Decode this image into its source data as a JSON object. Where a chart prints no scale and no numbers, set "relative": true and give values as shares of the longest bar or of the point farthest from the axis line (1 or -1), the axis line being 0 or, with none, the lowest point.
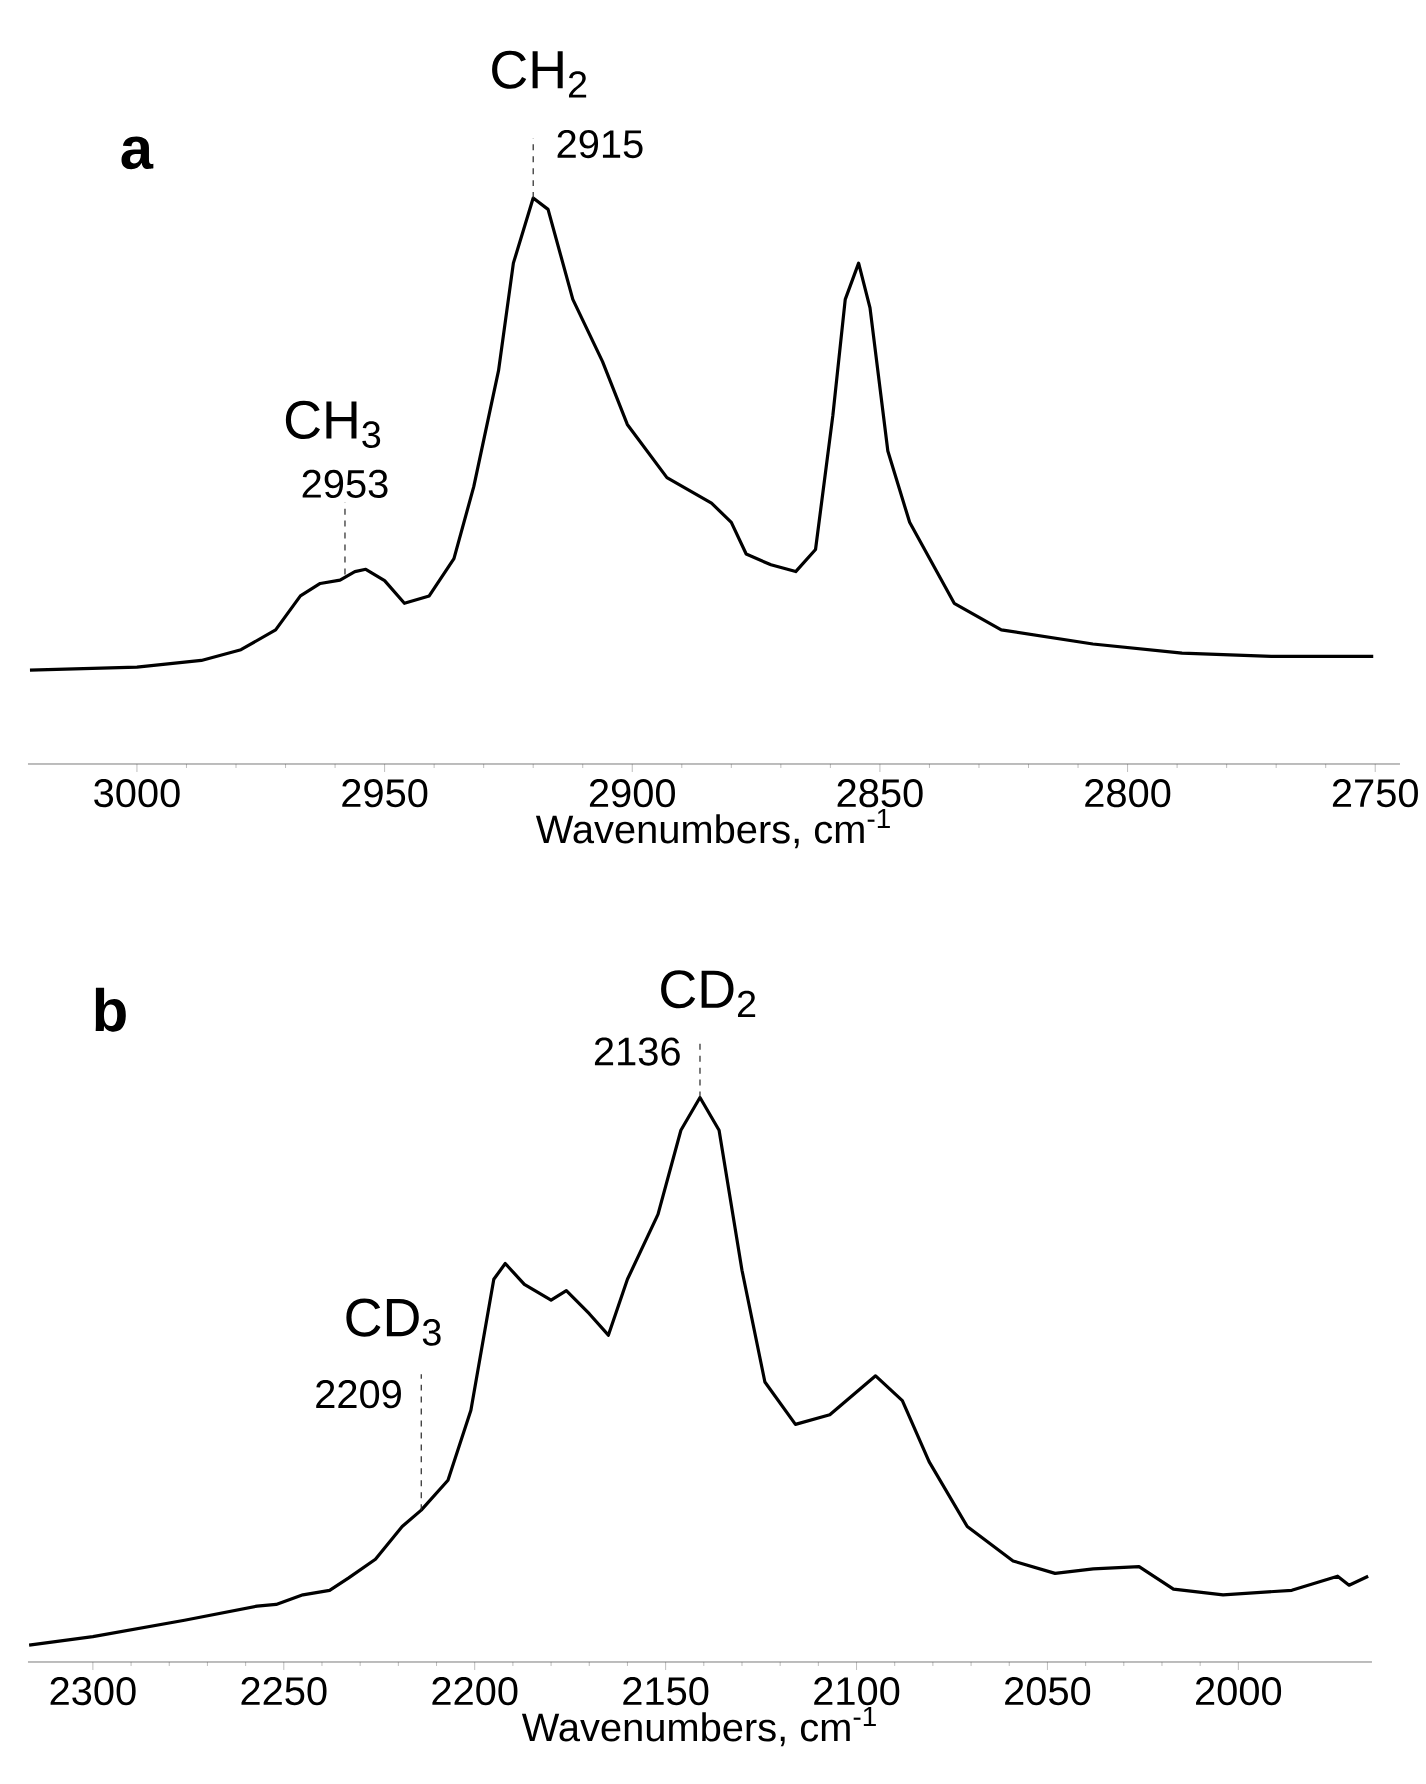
{
  "chart_data": [
    {
      "type": "line",
      "title": "a",
      "xlabel": "Wavenumbers, cm$^{-1}$",
      "relative": true,
      "color": "#000000",
      "xlim": [
        3022,
        2745
      ],
      "xticks": [
        3000,
        2950,
        2900,
        2850,
        2800,
        2750
      ],
      "x": [
        3021.6,
        3000,
        2987,
        2979,
        2972,
        2967,
        2963,
        2959,
        2956,
        2953.8,
        2950,
        2946,
        2941,
        2936,
        2932,
        2927,
        2924,
        2920,
        2917,
        2912,
        2906,
        2901,
        2893,
        2884,
        2880,
        2877,
        2872,
        2867,
        2863,
        2859.5,
        2857,
        2854.3,
        2852,
        2848.4,
        2844,
        2835,
        2825.5,
        2807,
        2789,
        2771,
        2750.4
      ],
      "values": [
        0.166,
        0.171,
        0.183,
        0.202,
        0.237,
        0.297,
        0.319,
        0.325,
        0.34,
        0.344,
        0.324,
        0.284,
        0.297,
        0.363,
        0.49,
        0.695,
        0.885,
        1.0,
        0.98,
        0.821,
        0.711,
        0.6,
        0.506,
        0.461,
        0.427,
        0.371,
        0.352,
        0.34,
        0.379,
        0.616,
        0.821,
        0.885,
        0.806,
        0.553,
        0.427,
        0.284,
        0.237,
        0.212,
        0.196,
        0.19,
        0.19
      ],
      "annotations": [
        {
          "text": "2953",
          "x": 2958,
          "y": 0.335
        },
        {
          "text": "CH$_{3}$",
          "x": 2958,
          "y": 0.335
        },
        {
          "text": "2915",
          "x": 2920,
          "y": 1.0
        },
        {
          "text": "CH$_{2}$",
          "x": 2920,
          "y": 1.0
        }
      ]
    },
    {
      "type": "line",
      "title": "b",
      "xlabel": "Wavenumbers, cm$^{-1}$",
      "relative": true,
      "color": "#000000",
      "xlim": [
        2317,
        1965
      ],
      "xticks": [
        2300,
        2250,
        2200,
        2150,
        2100,
        2050,
        2000
      ],
      "x": [
        2316.7,
        2300,
        2276,
        2257,
        2252,
        2245,
        2238,
        2233,
        2226,
        2219,
        2214,
        2207,
        2201,
        2195,
        2192,
        2187,
        2180,
        2176,
        2170,
        2165,
        2160,
        2152,
        2146,
        2141,
        2136,
        2130,
        2124,
        2116,
        2107,
        2095,
        2088,
        2081,
        2071,
        2059,
        2048,
        2038,
        2026,
        2017,
        2004,
        1986,
        1974,
        1971,
        1966
      ],
      "values": [
        0.03,
        0.045,
        0.074,
        0.099,
        0.102,
        0.119,
        0.127,
        0.149,
        0.182,
        0.24,
        0.269,
        0.322,
        0.446,
        0.678,
        0.706,
        0.669,
        0.641,
        0.658,
        0.617,
        0.579,
        0.678,
        0.793,
        0.942,
        1.0,
        0.942,
        0.694,
        0.496,
        0.421,
        0.438,
        0.507,
        0.463,
        0.355,
        0.24,
        0.179,
        0.157,
        0.165,
        0.169,
        0.129,
        0.119,
        0.127,
        0.152,
        0.136,
        0.152
      ],
      "annotations": [
        {
          "text": "2209",
          "x": 2214,
          "y": 0.269
        },
        {
          "text": "CD$_{3}$",
          "x": 2214,
          "y": 0.269
        },
        {
          "text": "2136",
          "x": 2141,
          "y": 1.0
        },
        {
          "text": "CD$_{2}$",
          "x": 2141,
          "y": 1.0
        }
      ]
    }
  ]
}
